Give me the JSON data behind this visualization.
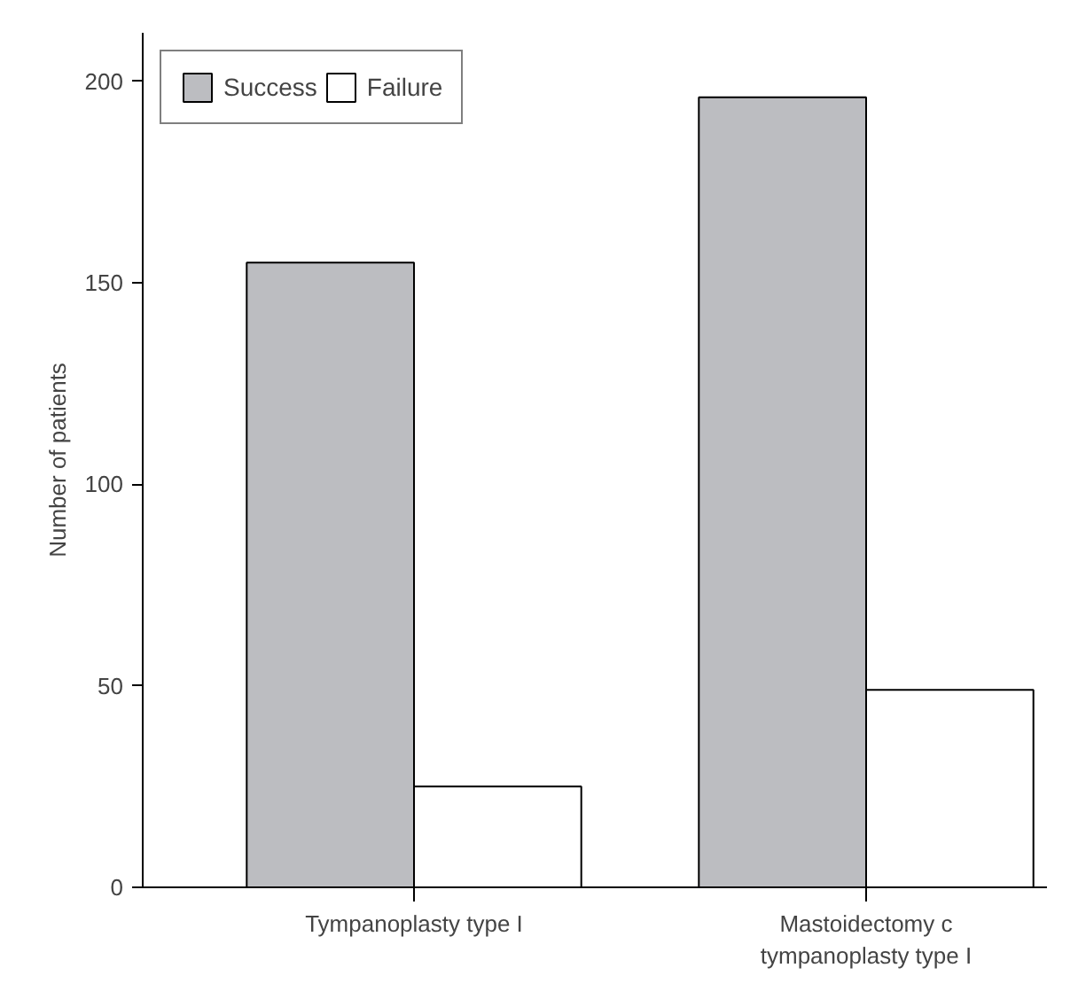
{
  "chart_data": {
    "type": "bar",
    "ylabel": "Number of patients",
    "categories": [
      "Tympanoplasty type I",
      "Mastoidectomy c\ntympanoplasty type I"
    ],
    "series": [
      {
        "name": "Success",
        "color": "#bcbdc1",
        "values": [
          155,
          196
        ]
      },
      {
        "name": "Failure",
        "color": "#ffffff",
        "values": [
          25,
          49
        ]
      }
    ],
    "ylim": [
      0,
      212
    ],
    "yticks": [
      0,
      50,
      100,
      150,
      200
    ],
    "grid": false,
    "legend": "top left"
  }
}
